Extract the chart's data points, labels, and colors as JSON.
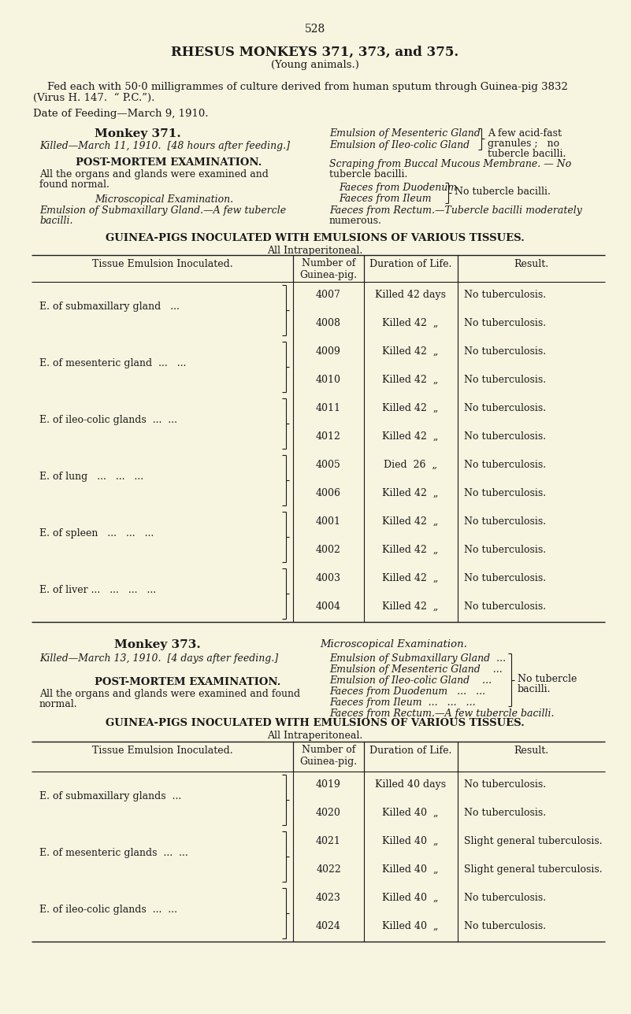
{
  "bg_color": "#f7f4e0",
  "text_color": "#1a1a1a",
  "page_number": "528",
  "title1": "RHESUS MONKEYS 371, 373, and 375.",
  "title2": "(Young animals.)",
  "intro1": "Fed each with 50·0 milligrammes of culture derived from human sputum through Guinea-pig 3832",
  "intro2": "(Virus H. 147.  “ P.C.”).",
  "date_line": "Date of Feeding—March 9, 1910.",
  "gp_header": "GUINEA-PIGS INOCULATED WITH EMULSIONS OF VARIOUS TISSUES.",
  "all_intra": "All Intraperitoneal.",
  "table1_col1": "Tissue Emulsion Inoculated.",
  "table1_col2": "Number of\nGuinea-pig.",
  "table1_col3": "Duration of Life.",
  "table1_col4": "Result.",
  "table1_tissue_groups": [
    {
      "label": "E. of submaxillary gland   ...",
      "rows": [
        0,
        1
      ]
    },
    {
      "label": "E. of mesenteric gland  ...   ...",
      "rows": [
        2,
        3
      ]
    },
    {
      "label": "E. of ileo-colic glands  ...  ...",
      "rows": [
        4,
        5
      ]
    },
    {
      "label": "E. of lung   ...   ...   ...",
      "rows": [
        6,
        7
      ]
    },
    {
      "label": "E. of spleen   ...   ...   ...",
      "rows": [
        8,
        9
      ]
    },
    {
      "label": "E. of liver ...   ...   ...   ...",
      "rows": [
        10,
        11
      ]
    }
  ],
  "table1_rows": [
    {
      "gp": "4007",
      "dur": "Killed 42 days",
      "result": "No tuberculosis."
    },
    {
      "gp": "4008",
      "dur": "Killed 42  „",
      "result": "No tuberculosis."
    },
    {
      "gp": "4009",
      "dur": "Killed 42  „",
      "result": "No tuberculosis."
    },
    {
      "gp": "4010",
      "dur": "Killed 42  „",
      "result": "No tuberculosis."
    },
    {
      "gp": "4011",
      "dur": "Killed 42  „",
      "result": "No tuberculosis."
    },
    {
      "gp": "4012",
      "dur": "Killed 42  „",
      "result": "No tuberculosis."
    },
    {
      "gp": "4005",
      "dur": "Died  26  „",
      "result": "No tuberculosis."
    },
    {
      "gp": "4006",
      "dur": "Killed 42  „",
      "result": "No tuberculosis."
    },
    {
      "gp": "4001",
      "dur": "Killed 42  „",
      "result": "No tuberculosis."
    },
    {
      "gp": "4002",
      "dur": "Killed 42  „",
      "result": "No tuberculosis."
    },
    {
      "gp": "4003",
      "dur": "Killed 42  „",
      "result": "No tuberculosis."
    },
    {
      "gp": "4004",
      "dur": "Killed 42  „",
      "result": "No tuberculosis."
    }
  ],
  "table2_tissue_groups": [
    {
      "label": "E. of submaxillary glands  ...",
      "rows": [
        0,
        1
      ]
    },
    {
      "label": "E. of mesenteric glands  ...  ...",
      "rows": [
        2,
        3
      ]
    },
    {
      "label": "E. of ileo-colic glands  ...  ...",
      "rows": [
        4,
        5
      ]
    }
  ],
  "table2_rows": [
    {
      "gp": "4019",
      "dur": "Killed 40 days",
      "result": "No tuberculosis."
    },
    {
      "gp": "4020",
      "dur": "Killed 40  „",
      "result": "No tuberculosis."
    },
    {
      "gp": "4021",
      "dur": "Killed 40  „",
      "result": "Slight general tuberculosis."
    },
    {
      "gp": "4022",
      "dur": "Killed 40  „",
      "result": "Slight general tuberculosis."
    },
    {
      "gp": "4023",
      "dur": "Killed 40  „",
      "result": "No tuberculosis."
    },
    {
      "gp": "4024",
      "dur": "Killed 40  „",
      "result": "No tuberculosis."
    }
  ]
}
